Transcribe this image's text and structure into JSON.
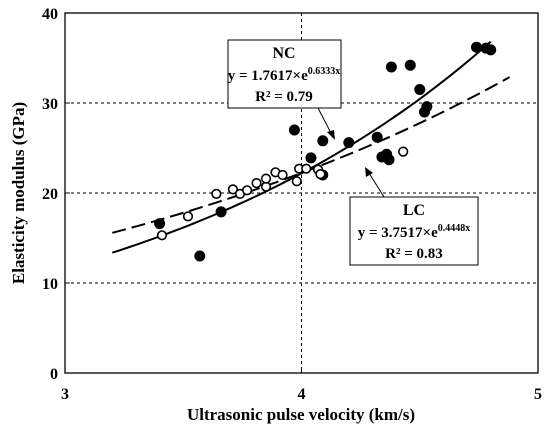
{
  "chart_data": {
    "type": "scatter",
    "xlabel": "Ultrasonic pulse velocity (km/s)",
    "ylabel": "Elasticity modulus (GPa)",
    "xlim": [
      3,
      5
    ],
    "ylim": [
      0,
      40
    ],
    "x_ticks": [
      "3",
      "4",
      "5"
    ],
    "y_ticks": [
      "0",
      "10",
      "20",
      "30",
      "40"
    ],
    "grid": "horizontal and vertical dashed",
    "series": [
      {
        "name": "NC",
        "marker": "filled-circle",
        "color": "#000000",
        "points": [
          [
            3.4,
            16.6
          ],
          [
            3.57,
            13.0
          ],
          [
            3.66,
            17.9
          ],
          [
            3.97,
            27.0
          ],
          [
            4.04,
            23.9
          ],
          [
            4.09,
            22.0
          ],
          [
            4.09,
            25.8
          ],
          [
            4.2,
            25.6
          ],
          [
            4.32,
            26.2
          ],
          [
            4.34,
            24.0
          ],
          [
            4.36,
            24.3
          ],
          [
            4.37,
            23.7
          ],
          [
            4.38,
            34.0
          ],
          [
            4.46,
            34.2
          ],
          [
            4.5,
            31.5
          ],
          [
            4.52,
            29.0
          ],
          [
            4.53,
            29.6
          ],
          [
            4.74,
            36.2
          ],
          [
            4.78,
            36.1
          ],
          [
            4.8,
            35.9
          ]
        ],
        "fit": {
          "equation": "y = 1.7617×e",
          "exponent": "0.6333x",
          "r2": "R² = 0.79",
          "a": 1.7617,
          "b": 0.6333,
          "x_range": [
            3.2,
            4.8
          ],
          "style": "solid"
        }
      },
      {
        "name": "LC",
        "marker": "open-circle",
        "color": "#000000",
        "points": [
          [
            3.41,
            15.3
          ],
          [
            3.52,
            17.4
          ],
          [
            3.64,
            19.9
          ],
          [
            3.71,
            20.4
          ],
          [
            3.74,
            19.9
          ],
          [
            3.77,
            20.3
          ],
          [
            3.81,
            21.1
          ],
          [
            3.85,
            20.7
          ],
          [
            3.85,
            21.6
          ],
          [
            3.89,
            22.3
          ],
          [
            3.92,
            22.0
          ],
          [
            3.98,
            21.3
          ],
          [
            3.99,
            22.7
          ],
          [
            4.02,
            22.7
          ],
          [
            4.07,
            22.6
          ],
          [
            4.08,
            22.1
          ],
          [
            4.43,
            24.6
          ]
        ],
        "fit": {
          "equation": "y = 3.7517×e",
          "exponent": "0.4448x",
          "r2": "R² = 0.83",
          "a": 3.7517,
          "b": 0.4448,
          "x_range": [
            3.2,
            4.88
          ],
          "style": "dashed"
        }
      }
    ]
  }
}
